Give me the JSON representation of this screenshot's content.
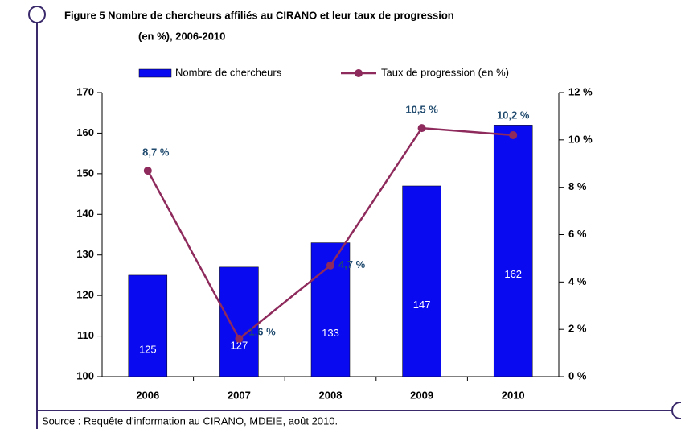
{
  "chart_data": {
    "type": "bar_line",
    "title": [
      "Figure 5  Nombre de chercheurs affiliés au CIRANO et leur taux de progression",
      "(en %), 2006-2010"
    ],
    "categories": [
      "2006",
      "2007",
      "2008",
      "2009",
      "2010"
    ],
    "series": [
      {
        "name": "Nombre de chercheurs",
        "type": "bar",
        "color": "#0a0af0",
        "values": [
          125,
          127,
          133,
          147,
          162
        ]
      },
      {
        "name": "Taux de progression (en %)",
        "type": "line",
        "axis": "y2",
        "color": "#8e2a5c",
        "values": [
          8.7,
          1.6,
          4.7,
          10.5,
          10.2
        ],
        "value_labels": [
          "8,7 %",
          "1,6 %",
          "4,7 %",
          "10,5 %",
          "10,2 %"
        ]
      }
    ],
    "ylim": [
      100,
      170
    ],
    "yticks": [
      100,
      110,
      120,
      130,
      140,
      150,
      160,
      170
    ],
    "y2lim": [
      0,
      12
    ],
    "y2ticks": [
      {
        "value": 0,
        "label": "0 %"
      },
      {
        "value": 2,
        "label": "2 %"
      },
      {
        "value": 4,
        "label": "4 %"
      },
      {
        "value": 6,
        "label": "6 %"
      },
      {
        "value": 8,
        "label": "8 %"
      },
      {
        "value": 10,
        "label": "10 %"
      },
      {
        "value": 12,
        "label": "12 %"
      }
    ],
    "legend": "top",
    "source": "Source : Requête d'information au CIRANO, MDEIE, août 2010."
  }
}
